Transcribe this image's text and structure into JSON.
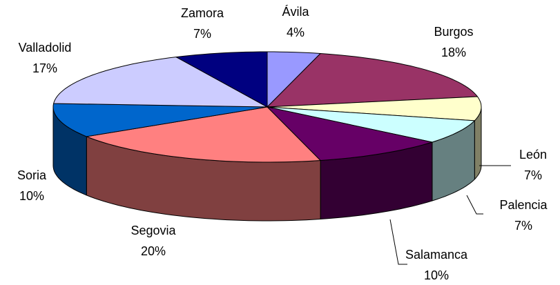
{
  "chart_data": {
    "type": "pie",
    "categories": [
      "Ávila",
      "Burgos",
      "León",
      "Palencia",
      "Salamanca",
      "Segovia",
      "Soria",
      "Valladolid",
      "Zamora"
    ],
    "values": [
      4,
      18,
      7,
      7,
      10,
      20,
      10,
      17,
      7
    ],
    "value_labels": [
      "4%",
      "18%",
      "7%",
      "7%",
      "10%",
      "20%",
      "10%",
      "17%",
      "7%"
    ],
    "colors": [
      "#9999ff",
      "#993366",
      "#ffffcc",
      "#ccffff",
      "#660066",
      "#ff8080",
      "#0066cc",
      "#ccccff",
      "#000080"
    ]
  }
}
